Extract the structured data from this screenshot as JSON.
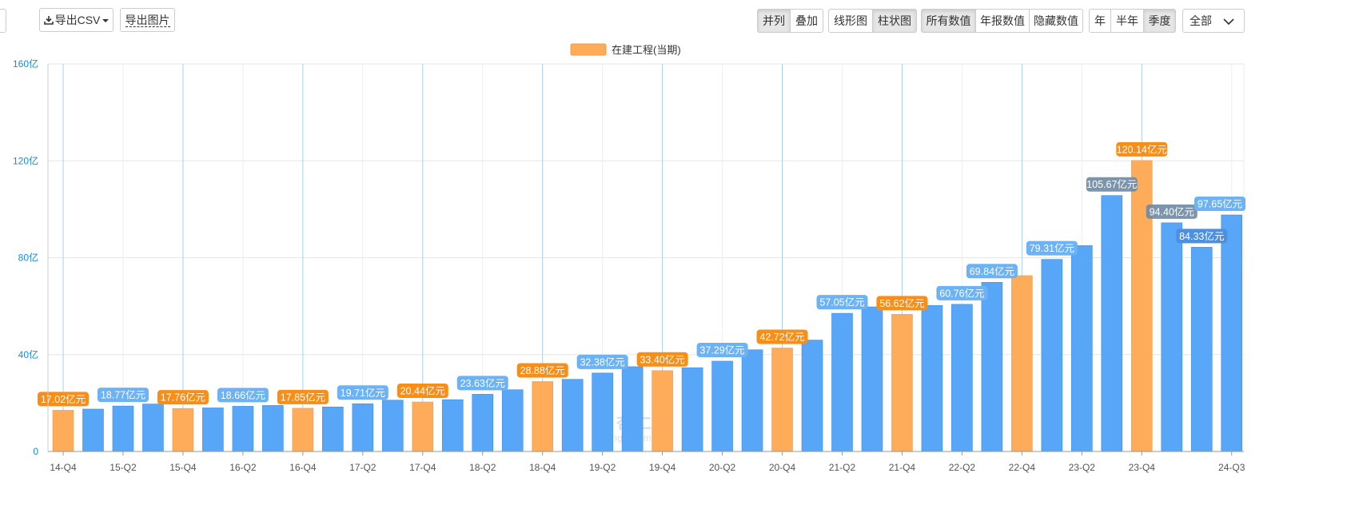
{
  "toolbar": {
    "export_csv": "导出CSV",
    "export_image": "导出图片",
    "layout_group": [
      {
        "label": "并列",
        "active": true
      },
      {
        "label": "叠加",
        "active": false
      }
    ],
    "chart_type_group": [
      {
        "label": "线形图",
        "active": false
      },
      {
        "label": "柱状图",
        "active": true
      }
    ],
    "value_group": [
      {
        "label": "所有数值",
        "active": true
      },
      {
        "label": "年报数值",
        "active": false
      },
      {
        "label": "隐藏数值",
        "active": false
      }
    ],
    "period_group": [
      {
        "label": "年",
        "active": false
      },
      {
        "label": "半年",
        "active": false
      },
      {
        "label": "季度",
        "active": true
      }
    ],
    "range_select": "全部"
  },
  "watermark": {
    "cn": "理杏仁",
    "en": "lixinger.com"
  },
  "colors": {
    "quarter": "#58a6f7",
    "annual": "#ffac5a",
    "label_blue": "#6cb2f5",
    "label_orange": "#f98e17",
    "label_dark": "#4d8fe0",
    "axis_text": "#1a8ae0",
    "grid": "#e6e6e6",
    "vgrid": "#a9cff4"
  },
  "chart_data": {
    "type": "bar",
    "legend": {
      "label": "在建工程(当期)",
      "position": "top-center"
    },
    "y_axis": {
      "ticks": [
        "0",
        "40亿",
        "80亿",
        "120亿",
        "160亿"
      ],
      "min": 0,
      "max": 160
    },
    "x_tick_labels": [
      "14-Q4",
      "15-Q2",
      "15-Q4",
      "16-Q2",
      "16-Q4",
      "17-Q2",
      "17-Q4",
      "18-Q2",
      "18-Q4",
      "19-Q2",
      "19-Q4",
      "20-Q2",
      "20-Q4",
      "21-Q2",
      "21-Q4",
      "22-Q2",
      "22-Q4",
      "23-Q2",
      "23-Q4",
      "24-Q3"
    ],
    "categories": [
      "14-Q4",
      "15-Q1",
      "15-Q2",
      "15-Q3",
      "15-Q4",
      "16-Q1",
      "16-Q2",
      "16-Q3",
      "16-Q4",
      "17-Q1",
      "17-Q2",
      "17-Q3",
      "17-Q4",
      "18-Q1",
      "18-Q2",
      "18-Q3",
      "18-Q4",
      "19-Q1",
      "19-Q2",
      "19-Q3",
      "19-Q4",
      "20-Q1",
      "20-Q2",
      "20-Q3",
      "20-Q4",
      "21-Q1",
      "21-Q2",
      "21-Q3",
      "21-Q4",
      "22-Q1",
      "22-Q2",
      "22-Q3",
      "22-Q4",
      "23-Q1",
      "23-Q2",
      "23-Q3",
      "23-Q4",
      "24-Q1",
      "24-Q2",
      "24-Q3"
    ],
    "values": [
      17.02,
      17.5,
      18.77,
      19.6,
      17.76,
      18.0,
      18.66,
      19.0,
      17.85,
      18.4,
      19.71,
      21.2,
      20.44,
      21.4,
      23.63,
      25.5,
      28.88,
      29.8,
      32.38,
      35.0,
      33.4,
      34.6,
      37.29,
      42.0,
      42.72,
      46.0,
      57.05,
      59.7,
      56.62,
      60.3,
      60.76,
      69.84,
      72.6,
      79.31,
      85.0,
      105.67,
      120.14,
      94.4,
      84.33,
      97.65
    ],
    "annual": [
      true,
      false,
      false,
      false,
      true,
      false,
      false,
      false,
      true,
      false,
      false,
      false,
      true,
      false,
      false,
      false,
      true,
      false,
      false,
      false,
      true,
      false,
      false,
      false,
      true,
      false,
      false,
      false,
      true,
      false,
      false,
      false,
      true,
      false,
      false,
      false,
      true,
      false,
      false,
      false
    ],
    "data_labels": [
      {
        "i": 0,
        "text": "17.02亿元",
        "style": "orange"
      },
      {
        "i": 2,
        "text": "18.77亿元",
        "style": "blue"
      },
      {
        "i": 4,
        "text": "17.76亿元",
        "style": "orange"
      },
      {
        "i": 6,
        "text": "18.66亿元",
        "style": "blue"
      },
      {
        "i": 8,
        "text": "17.85亿元",
        "style": "orange"
      },
      {
        "i": 10,
        "text": "19.71亿元",
        "style": "blue"
      },
      {
        "i": 12,
        "text": "20.44亿元",
        "style": "orange"
      },
      {
        "i": 14,
        "text": "23.63亿元",
        "style": "blue"
      },
      {
        "i": 16,
        "text": "28.88亿元",
        "style": "orange"
      },
      {
        "i": 18,
        "text": "32.38亿元",
        "style": "blue"
      },
      {
        "i": 20,
        "text": "33.40亿元",
        "style": "orange"
      },
      {
        "i": 22,
        "text": "37.29亿元",
        "style": "blue"
      },
      {
        "i": 24,
        "text": "42.72亿元",
        "style": "orange"
      },
      {
        "i": 26,
        "text": "57.05亿元",
        "style": "blue"
      },
      {
        "i": 28,
        "text": "56.62亿元",
        "style": "orange"
      },
      {
        "i": 30,
        "text": "60.76亿元",
        "style": "blue"
      },
      {
        "i": 31,
        "text": "69.84亿元",
        "style": "blue"
      },
      {
        "i": 33,
        "text": "79.31亿元",
        "style": "blue"
      },
      {
        "i": 35,
        "text": "105.67亿元",
        "style": "gray"
      },
      {
        "i": 36,
        "text": "120.14亿元",
        "style": "orange"
      },
      {
        "i": 37,
        "text": "94.40亿元",
        "style": "gray"
      },
      {
        "i": 38,
        "text": "84.33亿元",
        "style": "dark"
      },
      {
        "i": 39,
        "text": "97.65亿元",
        "style": "blue"
      }
    ]
  }
}
